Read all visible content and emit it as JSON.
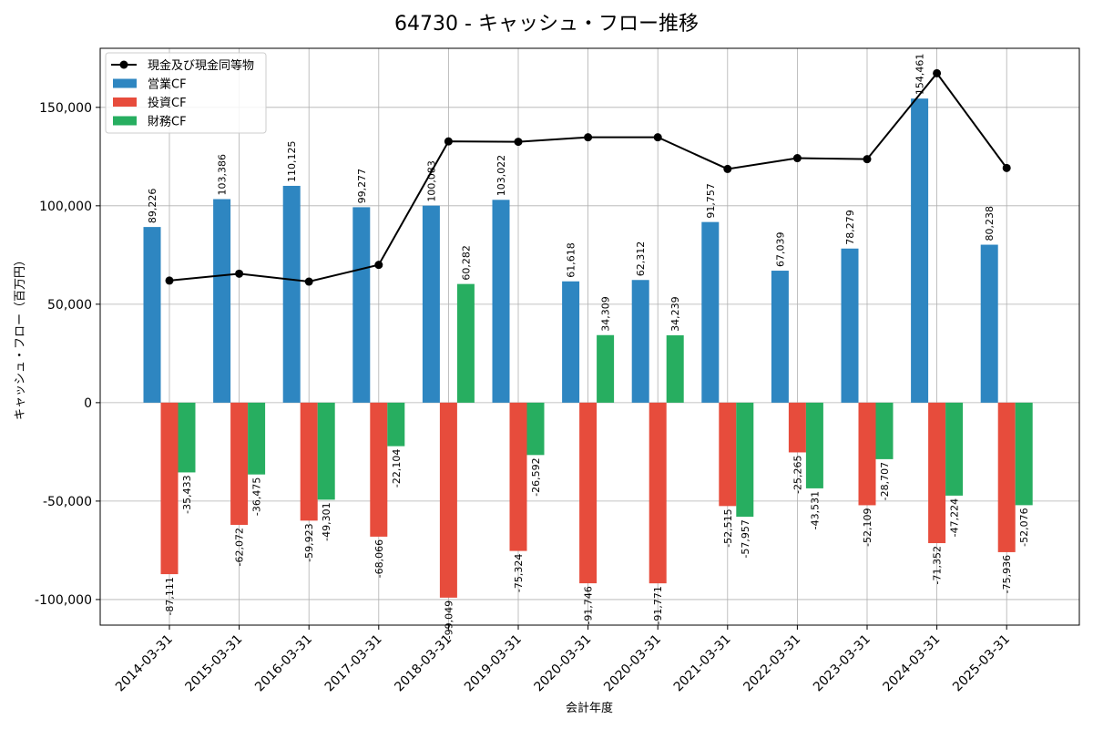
{
  "chart_data": {
    "type": "bar",
    "title": "64730 - キャッシュ・フロー推移",
    "xlabel": "会計年度",
    "ylabel": "キャッシュ・フロー（百万円）",
    "ylim": [
      -113000,
      180000
    ],
    "yticks": [
      -100000,
      -50000,
      0,
      50000,
      100000,
      150000
    ],
    "ytick_labels": [
      "-100,000",
      "-50,000",
      "0",
      "50,000",
      "100,000",
      "150,000"
    ],
    "grid": true,
    "legend_position": "top-left",
    "categories": [
      "2014-03-31",
      "2015-03-31",
      "2016-03-31",
      "2017-03-31",
      "2018-03-31",
      "2019-03-31",
      "2020-03-31",
      "2020-03-31",
      "2021-03-31",
      "2022-03-31",
      "2023-03-31",
      "2024-03-31",
      "2025-03-31"
    ],
    "series": [
      {
        "name": "営業CF",
        "kind": "bar",
        "color": "#2e86c1",
        "values": [
          89226,
          103386,
          110125,
          99277,
          100083,
          103022,
          61618,
          62312,
          91757,
          67039,
          78279,
          154461,
          80238
        ],
        "labels": [
          "89,226",
          "103,386",
          "110,125",
          "99,277",
          "100,083",
          "103,022",
          "61,618",
          "62,312",
          "91,757",
          "67,039",
          "78,279",
          "154,461",
          "80,238"
        ]
      },
      {
        "name": "投資CF",
        "kind": "bar",
        "color": "#e74c3c",
        "values": [
          -87111,
          -62072,
          -59923,
          -68066,
          -99049,
          -75324,
          -91746,
          -91771,
          -52515,
          -25265,
          -52109,
          -71352,
          -75936
        ],
        "labels": [
          "-87,111",
          "-62,072",
          "-59,923",
          "-68,066",
          "-99,049",
          "-75,324",
          "-91,746",
          "-91,771",
          "-52,515",
          "-25,265",
          "-52,109",
          "-71,352",
          "-75,936"
        ]
      },
      {
        "name": "財務CF",
        "kind": "bar",
        "color": "#27ae60",
        "values": [
          -35433,
          -36475,
          -49301,
          -22104,
          60282,
          -26592,
          34309,
          34239,
          -57957,
          -43531,
          -28707,
          -47224,
          -52076
        ],
        "labels": [
          "-35,433",
          "-36,475",
          "-49,301",
          "-22,104",
          "60,282",
          "-26,592",
          "34,309",
          "34,239",
          "-57,957",
          "-43,531",
          "-28,707",
          "-47,224",
          "-52,076"
        ]
      },
      {
        "name": "現金及び現金同等物",
        "kind": "line",
        "color": "#000000",
        "values": [
          62000,
          65500,
          61500,
          70000,
          132700,
          132500,
          134800,
          134800,
          118700,
          124200,
          123700,
          167300,
          119200
        ]
      }
    ]
  }
}
